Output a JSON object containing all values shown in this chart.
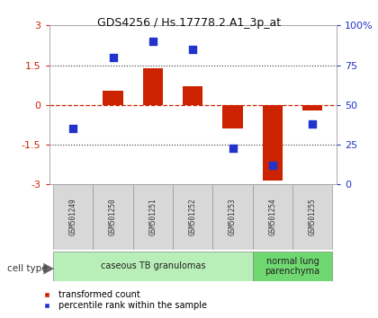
{
  "title": "GDS4256 / Hs.17778.2.A1_3p_at",
  "samples": [
    "GSM501249",
    "GSM501250",
    "GSM501251",
    "GSM501252",
    "GSM501253",
    "GSM501254",
    "GSM501255"
  ],
  "red_values": [
    0.0,
    0.55,
    1.4,
    0.7,
    -0.9,
    -2.85,
    -0.2
  ],
  "blue_values_pct": [
    35,
    80,
    90,
    85,
    23,
    12,
    38
  ],
  "ylim_left": [
    -3,
    3
  ],
  "ylim_right": [
    0,
    100
  ],
  "left_ticks": [
    -3,
    -1.5,
    0,
    1.5,
    3
  ],
  "right_ticks": [
    0,
    25,
    50,
    75,
    100
  ],
  "right_tick_labels": [
    "0",
    "25",
    "50",
    "75",
    "100%"
  ],
  "cell_types": [
    {
      "label": "caseous TB granulomas",
      "samples_range": [
        0,
        4
      ],
      "color": "#b8efb8"
    },
    {
      "label": "normal lung\nparenchyma",
      "samples_range": [
        5,
        6
      ],
      "color": "#70d870"
    }
  ],
  "cell_type_label": "cell type",
  "legend_red": "transformed count",
  "legend_blue": "percentile rank within the sample",
  "red_color": "#cc2200",
  "blue_color": "#2233cc",
  "bar_width": 0.5,
  "title_color": "#111111",
  "title_fontsize": 9,
  "sample_box_color": "#d8d8d8",
  "sample_box_edge": "#999999",
  "sample_label_fontsize": 5.5,
  "ytick_fontsize": 8,
  "legend_fontsize": 7
}
